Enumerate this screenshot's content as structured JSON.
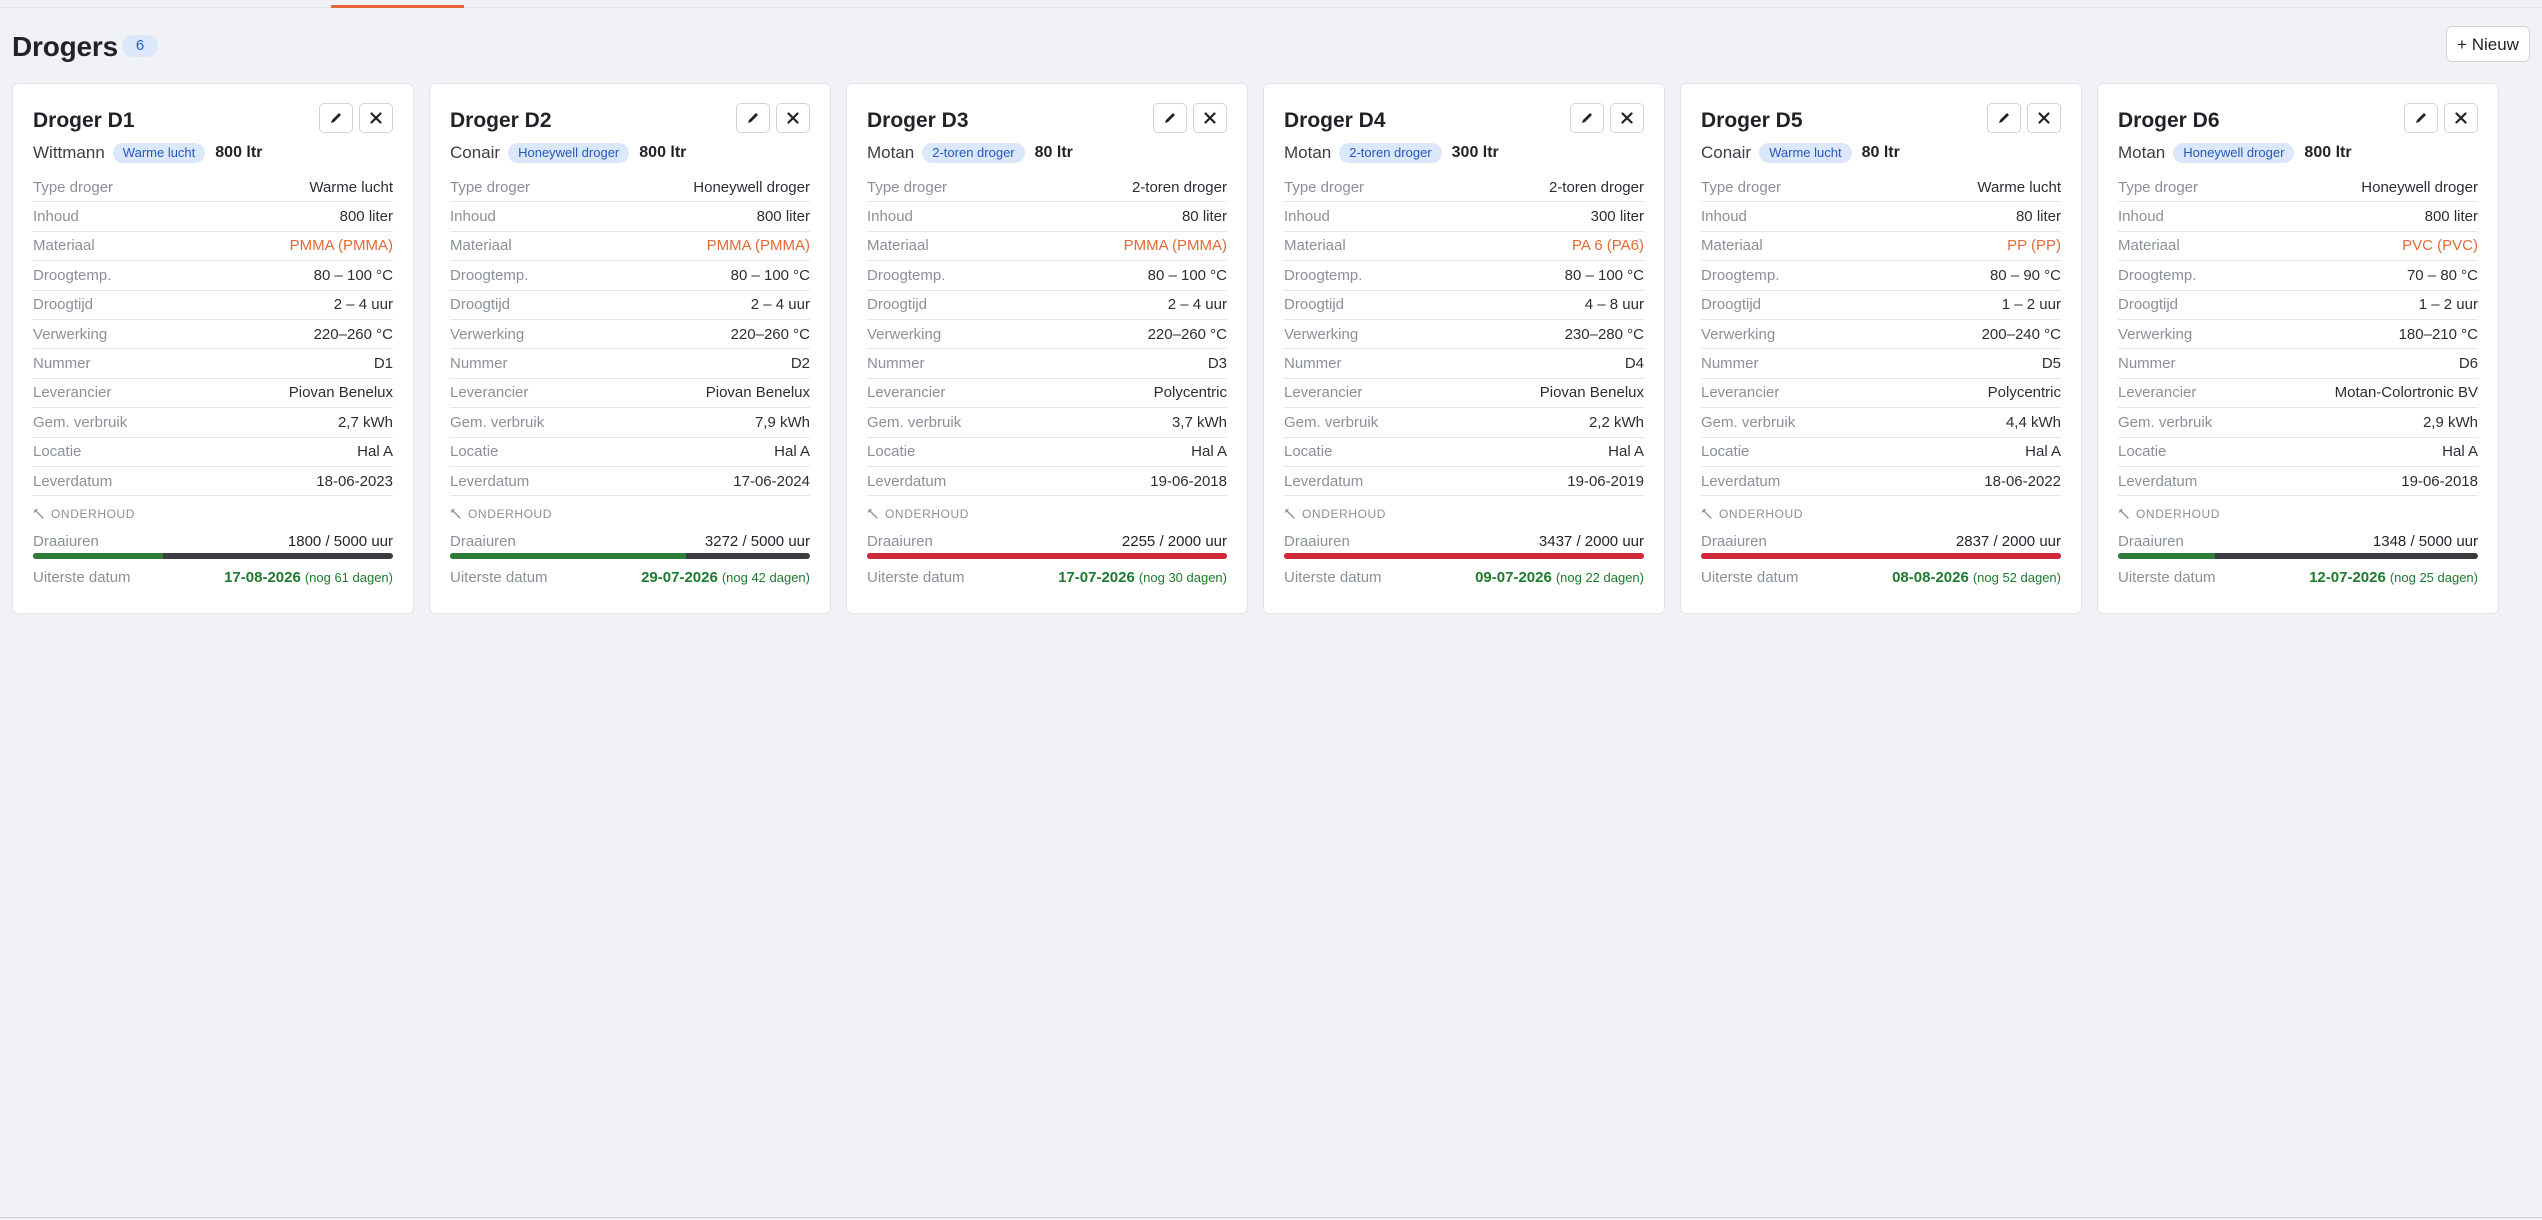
{
  "page": {
    "title": "Drogers",
    "count": "6",
    "new_button": "+ Nieuw"
  },
  "labels": {
    "type": "Type droger",
    "inhoud": "Inhoud",
    "materiaal": "Materiaal",
    "droogtemp": "Droogtemp.",
    "droogtijd": "Droogtijd",
    "verwerking": "Verwerking",
    "nummer": "Nummer",
    "leverancier": "Leverancier",
    "verbruik": "Gem. verbruik",
    "locatie": "Locatie",
    "leverdatum": "Leverdatum",
    "onderhoud": "ONDERHOUD",
    "draaiuren": "Draaiuren",
    "uiterste": "Uiterste datum"
  },
  "icons": {
    "edit": "pencil-icon",
    "delete": "close-icon",
    "maintenance": "wrench-icon"
  },
  "colors": {
    "ok": "#2e7d3b",
    "over": "#d0293a",
    "badge_bg": "#dbe7fb",
    "material": "#e36a35",
    "accent": "#e8663a"
  },
  "cards": [
    {
      "name": "Droger D1",
      "brand": "Wittmann",
      "badge": "Warme lucht",
      "cap": "800 ltr",
      "type": "Warme lucht",
      "inhoud": "800 liter",
      "materiaal": "PMMA (PMMA)",
      "droogtemp": "80 – 100 °C",
      "droogtijd": "2 – 4 uur",
      "verwerking": "220–260 °C",
      "nummer": "D1",
      "leverancier": "Piovan Benelux",
      "verbruik": "2,7 kWh",
      "locatie": "Hal A",
      "leverdatum": "18-06-2023",
      "uren": "1800 / 5000 uur",
      "progress": 0.36,
      "over": false,
      "datum": "17-08-2026",
      "rest": "(nog 61 dagen)"
    },
    {
      "name": "Droger D2",
      "brand": "Conair",
      "badge": "Honeywell droger",
      "cap": "800 ltr",
      "type": "Honeywell droger",
      "inhoud": "800 liter",
      "materiaal": "PMMA (PMMA)",
      "droogtemp": "80 – 100 °C",
      "droogtijd": "2 – 4 uur",
      "verwerking": "220–260 °C",
      "nummer": "D2",
      "leverancier": "Piovan Benelux",
      "verbruik": "7,9 kWh",
      "locatie": "Hal A",
      "leverdatum": "17-06-2024",
      "uren": "3272 / 5000 uur",
      "progress": 0.6544,
      "over": false,
      "datum": "29-07-2026",
      "rest": "(nog 42 dagen)"
    },
    {
      "name": "Droger D3",
      "brand": "Motan",
      "badge": "2-toren droger",
      "cap": "80 ltr",
      "type": "2-toren droger",
      "inhoud": "80 liter",
      "materiaal": "PMMA (PMMA)",
      "droogtemp": "80 – 100 °C",
      "droogtijd": "2 – 4 uur",
      "verwerking": "220–260 °C",
      "nummer": "D3",
      "leverancier": "Polycentric",
      "verbruik": "3,7 kWh",
      "locatie": "Hal A",
      "leverdatum": "19-06-2018",
      "uren": "2255 / 2000 uur",
      "progress": 1,
      "over": true,
      "datum": "17-07-2026",
      "rest": "(nog 30 dagen)"
    },
    {
      "name": "Droger D4",
      "brand": "Motan",
      "badge": "2-toren droger",
      "cap": "300 ltr",
      "type": "2-toren droger",
      "inhoud": "300 liter",
      "materiaal": "PA 6 (PA6)",
      "droogtemp": "80 – 100 °C",
      "droogtijd": "4 – 8 uur",
      "verwerking": "230–280 °C",
      "nummer": "D4",
      "leverancier": "Piovan Benelux",
      "verbruik": "2,2 kWh",
      "locatie": "Hal A",
      "leverdatum": "19-06-2019",
      "uren": "3437 / 2000 uur",
      "progress": 1,
      "over": true,
      "datum": "09-07-2026",
      "rest": "(nog 22 dagen)"
    },
    {
      "name": "Droger D5",
      "brand": "Conair",
      "badge": "Warme lucht",
      "cap": "80 ltr",
      "type": "Warme lucht",
      "inhoud": "80 liter",
      "materiaal": "PP (PP)",
      "droogtemp": "80 – 90 °C",
      "droogtijd": "1 – 2 uur",
      "verwerking": "200–240 °C",
      "nummer": "D5",
      "leverancier": "Polycentric",
      "verbruik": "4,4 kWh",
      "locatie": "Hal A",
      "leverdatum": "18-06-2022",
      "uren": "2837 / 2000 uur",
      "progress": 1,
      "over": true,
      "datum": "08-08-2026",
      "rest": "(nog 52 dagen)"
    },
    {
      "name": "Droger D6",
      "brand": "Motan",
      "badge": "Honeywell droger",
      "cap": "800 ltr",
      "type": "Honeywell droger",
      "inhoud": "800 liter",
      "materiaal": "PVC (PVC)",
      "droogtemp": "70 – 80 °C",
      "droogtijd": "1 – 2 uur",
      "verwerking": "180–210 °C",
      "nummer": "D6",
      "leverancier": "Motan-Colortronic BV",
      "verbruik": "2,9 kWh",
      "locatie": "Hal A",
      "leverdatum": "19-06-2018",
      "uren": "1348 / 5000 uur",
      "progress": 0.2696,
      "over": false,
      "datum": "12-07-2026",
      "rest": "(nog 25 dagen)"
    }
  ]
}
